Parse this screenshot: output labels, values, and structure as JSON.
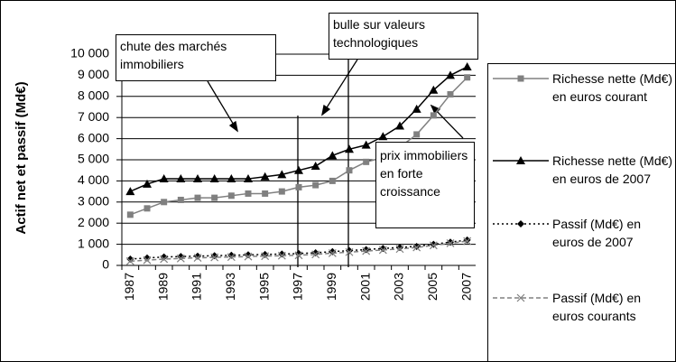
{
  "chart_data": {
    "type": "line",
    "ylabel": "Actif net et passif (Md€)",
    "categories": [
      "1987",
      null,
      "1989",
      null,
      "1991",
      null,
      "1993",
      null,
      "1995",
      null,
      "1997",
      null,
      "1999",
      null,
      "2001",
      null,
      "2003",
      null,
      "2005",
      null,
      "2007"
    ],
    "series": [
      {
        "name": "Richesse nette (Md€) en euros courant",
        "color": "#808080",
        "marker": "square",
        "dash": "solid",
        "values": [
          2400,
          2700,
          3000,
          3100,
          3200,
          3200,
          3300,
          3400,
          3400,
          3500,
          3700,
          3800,
          4000,
          4500,
          4900,
          5100,
          5600,
          6200,
          7100,
          8100,
          8900
        ]
      },
      {
        "name": "Richesse nette (Md€) en euros de 2007",
        "color": "#000000",
        "marker": "triangle",
        "dash": "solid",
        "values": [
          3500,
          3850,
          4100,
          4100,
          4100,
          4100,
          4100,
          4100,
          4200,
          4300,
          4500,
          4700,
          5200,
          5500,
          5700,
          6100,
          6600,
          7400,
          8300,
          9000,
          9400
        ]
      },
      {
        "name": "Passif (Md€) en euros de 2007",
        "color": "#000000",
        "marker": "diamond",
        "dash": "dotted",
        "values": [
          300,
          350,
          400,
          420,
          440,
          460,
          480,
          500,
          520,
          540,
          560,
          600,
          650,
          700,
          750,
          800,
          850,
          900,
          1000,
          1100,
          1200
        ]
      },
      {
        "name": "Passif (Md€) en euros courants",
        "color": "#808080",
        "marker": "x",
        "dash": "dashed",
        "values": [
          200,
          250,
          300,
          330,
          360,
          380,
          400,
          420,
          440,
          460,
          480,
          520,
          580,
          630,
          680,
          730,
          780,
          850,
          950,
          1050,
          1150
        ]
      }
    ],
    "ylim": [
      0,
      10000
    ],
    "yticks": [
      0,
      {
        "value": 1000,
        "label": "1 000"
      },
      {
        "value": 2000,
        "label": "2 000"
      },
      {
        "value": 3000,
        "label": "3 000"
      },
      {
        "value": 4000,
        "label": "4 000"
      },
      {
        "value": 5000,
        "label": "5 000"
      },
      {
        "value": 6000,
        "label": "6 000"
      },
      {
        "value": 7000,
        "label": "7 000"
      },
      {
        "value": 8000,
        "label": "8 000"
      },
      {
        "value": 9000,
        "label": "9 000"
      },
      {
        "value": 10000,
        "label": "10 000"
      }
    ],
    "grid": true,
    "legend": "right",
    "annotations": [
      "chute des marchés immobiliers",
      "bulle sur valeurs technologiques",
      "prix immobiliers en forte croissance"
    ]
  }
}
